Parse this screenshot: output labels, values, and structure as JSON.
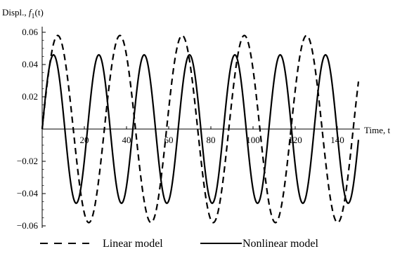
{
  "chart_data": {
    "type": "line",
    "ylabel": "Displ., f₁(t)",
    "ylabel_parts": {
      "text": "Displ., ",
      "func": "f",
      "sub": "1",
      "arg": "(t)"
    },
    "xlabel": "Time, t",
    "xlim": [
      0,
      150
    ],
    "ylim": [
      -0.06,
      0.06
    ],
    "x_ticks": [
      20,
      40,
      60,
      80,
      100,
      120,
      140
    ],
    "y_ticks": [
      0.06,
      0.04,
      0.02,
      -0.02,
      -0.04,
      -0.06
    ],
    "y_tick_labels": [
      "0.06",
      "0.04",
      "0.02",
      "−0.02",
      "−0.04",
      "−0.06"
    ],
    "grid": false,
    "legend_position": "bottom",
    "series": [
      {
        "name": "Linear model",
        "style": "dashed",
        "color": "#000000",
        "amplitude": 0.058,
        "period": 29.5,
        "x": [
          0,
          7.4,
          22.1,
          36.9,
          51.6,
          66.4,
          81.1,
          95.9,
          110.6,
          125.4,
          140.1,
          150
        ],
        "y": [
          0,
          0.058,
          -0.058,
          0.058,
          -0.058,
          0.058,
          -0.058,
          0.058,
          -0.058,
          0.058,
          -0.058,
          0.056
        ]
      },
      {
        "name": "Nonlinear model",
        "style": "solid",
        "color": "#000000",
        "amplitude": 0.046,
        "period": 21.5,
        "x": [
          0,
          5.4,
          16.1,
          26.9,
          37.6,
          48.4,
          59.1,
          69.9,
          80.6,
          91.4,
          102.1,
          112.9,
          123.6,
          134.4,
          145.1,
          150
        ],
        "y": [
          0,
          0.046,
          -0.046,
          0.046,
          -0.046,
          0.046,
          -0.046,
          0.046,
          -0.046,
          0.046,
          -0.046,
          0.046,
          -0.046,
          0.046,
          -0.046,
          0.04
        ]
      }
    ]
  }
}
